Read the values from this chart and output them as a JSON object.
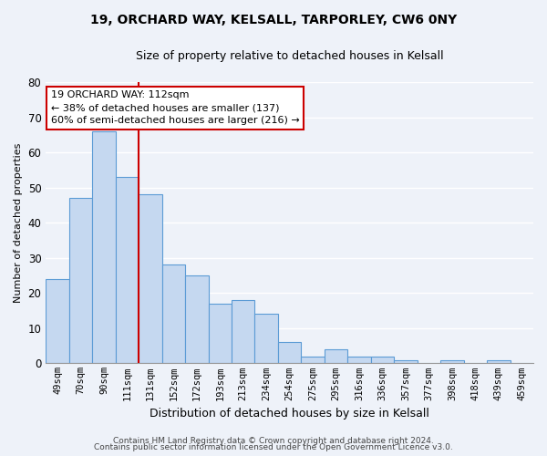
{
  "title1": "19, ORCHARD WAY, KELSALL, TARPORLEY, CW6 0NY",
  "title2": "Size of property relative to detached houses in Kelsall",
  "xlabel": "Distribution of detached houses by size in Kelsall",
  "ylabel": "Number of detached properties",
  "categories": [
    "49sqm",
    "70sqm",
    "90sqm",
    "111sqm",
    "131sqm",
    "152sqm",
    "172sqm",
    "193sqm",
    "213sqm",
    "234sqm",
    "254sqm",
    "275sqm",
    "295sqm",
    "316sqm",
    "336sqm",
    "357sqm",
    "377sqm",
    "398sqm",
    "418sqm",
    "439sqm",
    "459sqm"
  ],
  "values": [
    24,
    47,
    66,
    53,
    48,
    28,
    25,
    17,
    18,
    14,
    6,
    2,
    4,
    2,
    2,
    1,
    0,
    1,
    0,
    1,
    0
  ],
  "bar_color": "#c5d8f0",
  "bar_edge_color": "#5b9bd5",
  "vline_x_index": 3,
  "vline_color": "#cc0000",
  "annotation_line1": "19 ORCHARD WAY: 112sqm",
  "annotation_line2": "← 38% of detached houses are smaller (137)",
  "annotation_line3": "60% of semi-detached houses are larger (216) →",
  "annotation_box_color": "#ffffff",
  "annotation_box_edge": "#cc0000",
  "ylim": [
    0,
    80
  ],
  "yticks": [
    0,
    10,
    20,
    30,
    40,
    50,
    60,
    70,
    80
  ],
  "footer1": "Contains HM Land Registry data © Crown copyright and database right 2024.",
  "footer2": "Contains public sector information licensed under the Open Government Licence v3.0.",
  "background_color": "#eef2f9",
  "grid_color": "#ffffff",
  "title1_fontsize": 10,
  "title2_fontsize": 9,
  "ylabel_fontsize": 8,
  "xlabel_fontsize": 9,
  "annotation_fontsize": 8,
  "footer_fontsize": 6.5
}
